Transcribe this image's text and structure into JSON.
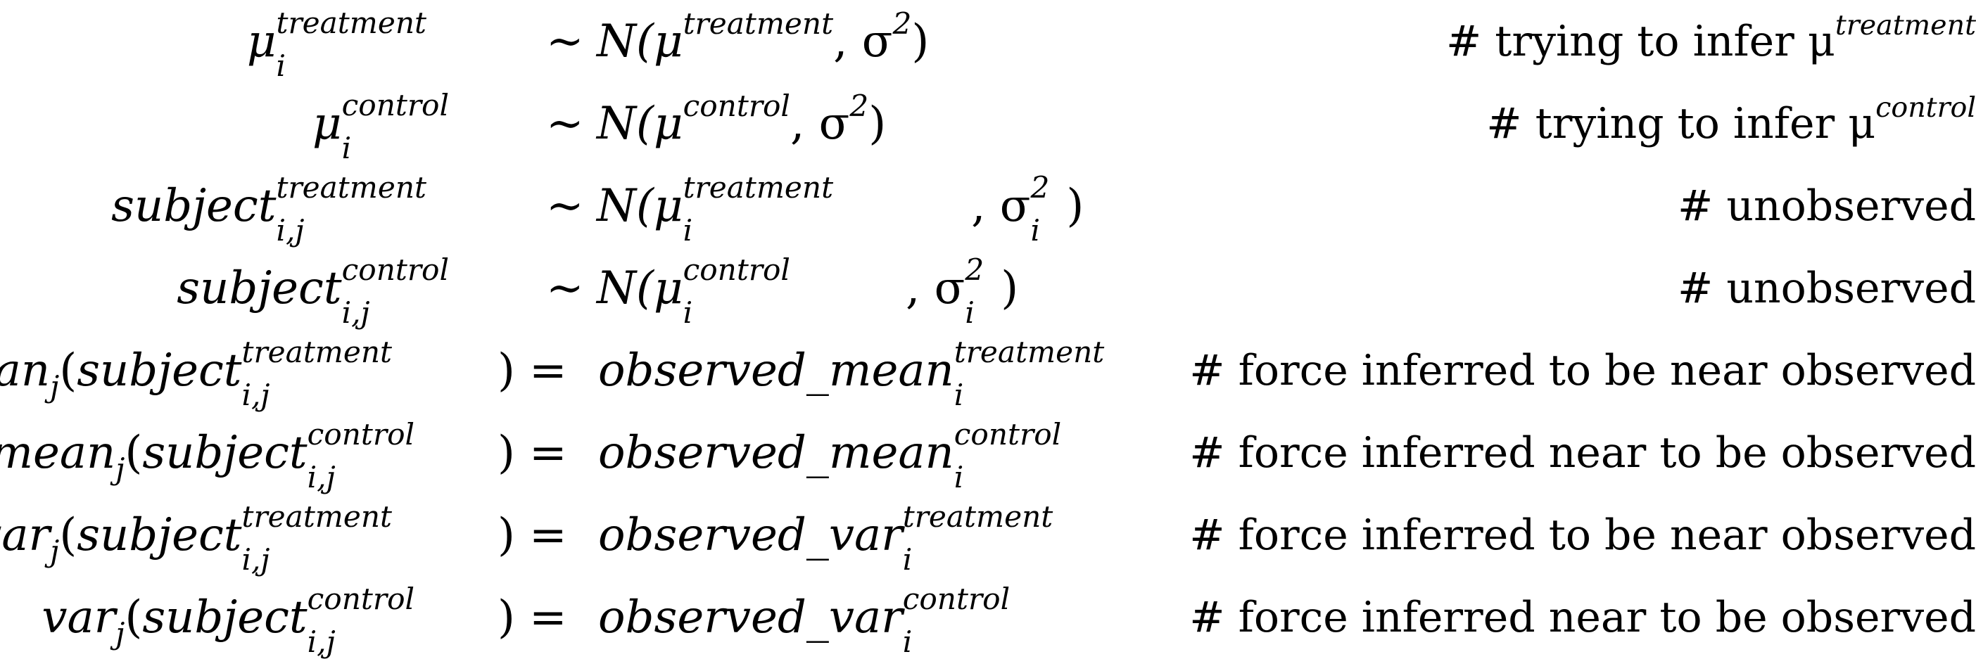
{
  "rows": [
    {
      "lhs_base": "μ",
      "lhs_sup": "treatment",
      "lhs_sub": "i",
      "rel": "∼",
      "rhs_pre": "N(μ",
      "rhs_sup": "treatment",
      "rhs_sub": "",
      "rhs_mid": ", σ",
      "rhs_sup2": "2",
      "rhs_sub2": "",
      "rhs_post": ")",
      "comment_text": "# trying to infer μ",
      "comment_sup": "treatment"
    },
    {
      "lhs_base": "μ",
      "lhs_sup": "control",
      "lhs_sub": "i",
      "rel": "∼",
      "rhs_pre": "N(μ",
      "rhs_sup": "control",
      "rhs_sub": "",
      "rhs_mid": ", σ",
      "rhs_sup2": "2",
      "rhs_sub2": "",
      "rhs_post": ")",
      "comment_text": "# trying to infer μ",
      "comment_sup": "control"
    },
    {
      "lhs_base": "subject",
      "lhs_sup": "treatment",
      "lhs_sub": "i,j",
      "rel": "∼",
      "rhs_pre": "N(μ",
      "rhs_sup": "treatment",
      "rhs_sub": "i",
      "rhs_mid": ", σ",
      "rhs_sup2": "2",
      "rhs_sub2": "i",
      "rhs_post": ")",
      "comment_text": "# unobserved",
      "comment_sup": ""
    },
    {
      "lhs_base": "subject",
      "lhs_sup": "control",
      "lhs_sub": "i,j",
      "rel": "∼",
      "rhs_pre": "N(μ",
      "rhs_sup": "control",
      "rhs_sub": "i",
      "rhs_mid": ", σ",
      "rhs_sup2": "2",
      "rhs_sub2": "i",
      "rhs_post": ")",
      "comment_text": "# unobserved",
      "comment_sup": ""
    },
    {
      "lhs_fn": "mean",
      "lhs_fn_sub": "j",
      "lhs_base": "subject",
      "lhs_sup": "treatment",
      "lhs_sub": "i,j",
      "rel": "=",
      "rhs_text": "observed_mean",
      "rhs_sup": "treatment",
      "rhs_sub": "i",
      "comment_text": "# force inferred to be near observed",
      "comment_sup": ""
    },
    {
      "lhs_fn": "mean",
      "lhs_fn_sub": "j",
      "lhs_base": "subject",
      "lhs_sup": "control",
      "lhs_sub": "i,j",
      "rel": "=",
      "rhs_text": "observed_mean",
      "rhs_sup": "control",
      "rhs_sub": "i",
      "comment_text": "# force inferred near to be observed",
      "comment_sup": ""
    },
    {
      "lhs_fn": "var",
      "lhs_fn_sub": "j",
      "lhs_base": "subject",
      "lhs_sup": "treatment",
      "lhs_sub": "i,j",
      "rel": "=",
      "rhs_text": "observed_var",
      "rhs_sup": "treatment",
      "rhs_sub": "i",
      "comment_text": "# force inferred to be near observed",
      "comment_sup": ""
    },
    {
      "lhs_fn": "var",
      "lhs_fn_sub": "j",
      "lhs_base": "subject",
      "lhs_sup": "control",
      "lhs_sub": "i,j",
      "rel": "=",
      "rhs_text": "observed_var",
      "rhs_sup": "control",
      "rhs_sub": "i",
      "comment_text": "# force inferred near to be observed",
      "comment_sup": ""
    }
  ]
}
